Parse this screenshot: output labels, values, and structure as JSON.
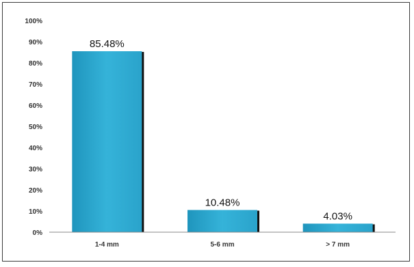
{
  "chart_data": {
    "type": "bar",
    "title": "",
    "xlabel": "",
    "ylabel": "",
    "categories": [
      "1-4 mm",
      "5-6 mm",
      "> 7 mm"
    ],
    "values": [
      85.48,
      10.48,
      4.03
    ],
    "data_labels": [
      "85.48%",
      "10.48%",
      "4.03%"
    ],
    "ylim": [
      0,
      100
    ],
    "y_ticks": [
      "0%",
      "10%",
      "20%",
      "30%",
      "40%",
      "50%",
      "60%",
      "70%",
      "80%",
      "90%",
      "100%"
    ],
    "grid": false,
    "legend": "none",
    "colors": {
      "bar": "#2aa8cf",
      "bar_dark": "#1d8db4",
      "bar_shadow": "#111111"
    }
  }
}
